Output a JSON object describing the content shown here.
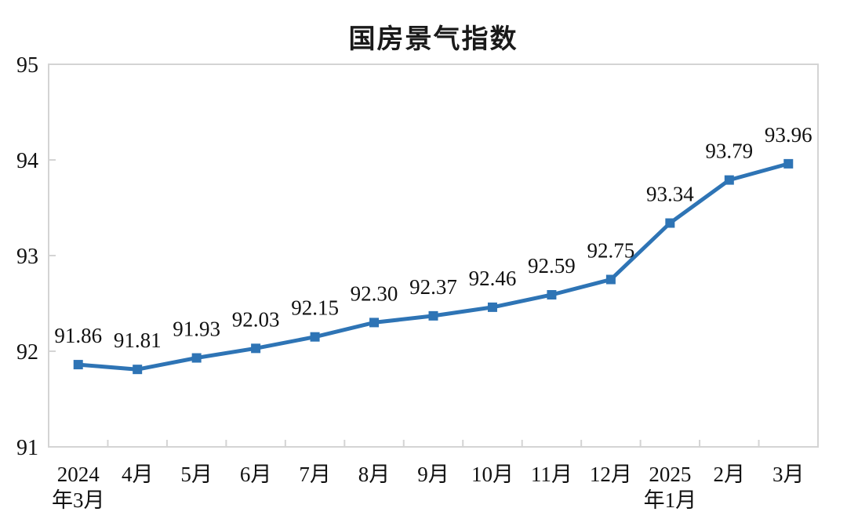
{
  "chart_data": {
    "type": "line",
    "title": "国房景气指数",
    "categories": [
      "2024\n年3月",
      "4月",
      "5月",
      "6月",
      "7月",
      "8月",
      "9月",
      "10月",
      "11月",
      "12月",
      "2025\n年1月",
      "2月",
      "3月"
    ],
    "values": [
      91.86,
      91.81,
      91.93,
      92.03,
      92.15,
      92.3,
      92.37,
      92.46,
      92.59,
      92.75,
      93.34,
      93.79,
      93.96
    ],
    "data_labels": [
      "91.86",
      "91.81",
      "91.93",
      "92.03",
      "92.15",
      "92.30",
      "92.37",
      "92.46",
      "92.59",
      "92.75",
      "93.34",
      "93.79",
      "93.96"
    ],
    "xlabel": "",
    "ylabel": "",
    "ylim": [
      91,
      95
    ],
    "yticks": [
      "91",
      "92",
      "93",
      "94",
      "95"
    ],
    "grid": false,
    "legend": "none",
    "colors": {
      "line": "#2E74B5",
      "marker": "#2E74B5",
      "axis": "#D4D4D4",
      "text": "#111111"
    }
  }
}
